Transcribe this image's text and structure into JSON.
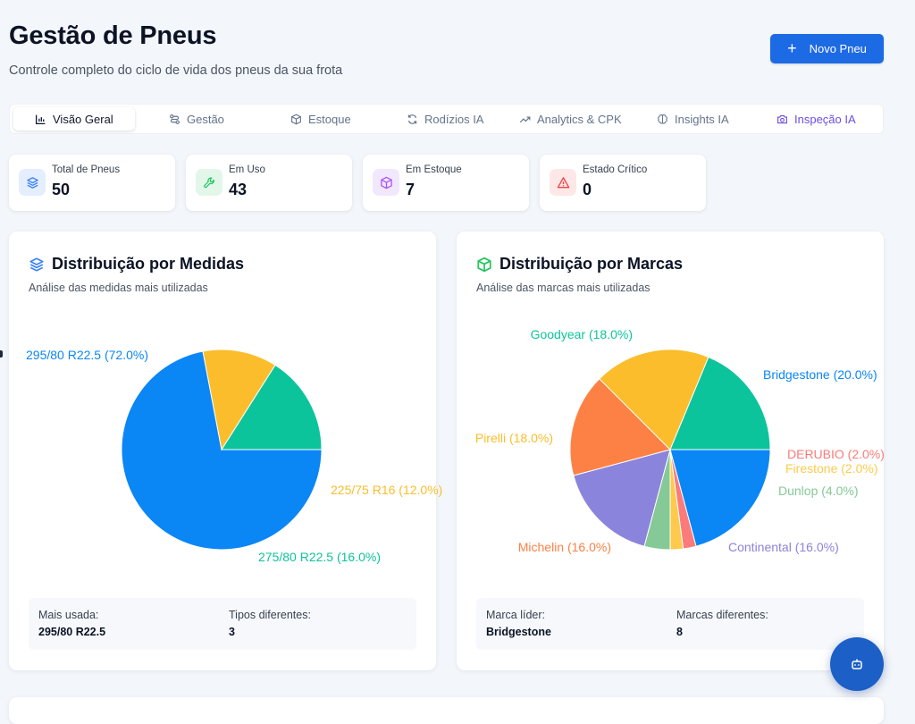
{
  "header": {
    "title": "Gestão de Pneus",
    "subtitle": "Controle completo do ciclo de vida dos pneus da sua frota",
    "new_button_label": "Novo Pneu"
  },
  "tabs": [
    {
      "label": "Visão Geral",
      "icon": "bar-chart-icon",
      "active": true
    },
    {
      "label": "Gestão",
      "icon": "route-icon"
    },
    {
      "label": "Estoque",
      "icon": "box-icon"
    },
    {
      "label": "Rodízios IA",
      "icon": "refresh-icon"
    },
    {
      "label": "Analytics & CPK",
      "icon": "trending-up-icon"
    },
    {
      "label": "Insights IA",
      "icon": "brain-icon"
    },
    {
      "label": "Inspeção IA",
      "icon": "camera-icon"
    }
  ],
  "stats": [
    {
      "label": "Total de Pneus",
      "value": "50",
      "icon": "layers-icon",
      "color": "#3b82f6"
    },
    {
      "label": "Em Uso",
      "value": "43",
      "icon": "wrench-icon",
      "color": "#22c55e"
    },
    {
      "label": "Em Estoque",
      "value": "7",
      "icon": "package-icon",
      "color": "#a855f7"
    },
    {
      "label": "Estado Crítico",
      "value": "0",
      "icon": "alert-triangle-icon",
      "color": "#ef4444"
    }
  ],
  "medidas": {
    "title": "Distribuição por Medidas",
    "subtitle": "Análise das medidas mais utilizadas",
    "footer": {
      "most_used_label": "Mais usada:",
      "most_used_value": "295/80 R22.5",
      "types_label": "Tipos diferentes:",
      "types_value": "3"
    }
  },
  "marcas": {
    "title": "Distribuição por Marcas",
    "subtitle": "Análise das marcas mais utilizadas",
    "footer": {
      "leader_label": "Marca líder:",
      "leader_value": "Bridgestone",
      "brands_label": "Marcas diferentes:",
      "brands_value": "8"
    }
  },
  "chart_data": [
    {
      "type": "pie",
      "categories": [
        "295/80 R22.5",
        "225/75 R16",
        "275/80 R22.5"
      ],
      "values": [
        72.0,
        12.0,
        16.0
      ],
      "labels": [
        "295/80 R22.5 (72.0%)",
        "225/75 R16 (12.0%)",
        "275/80 R22.5 (16.0%)"
      ],
      "colors": [
        "#0a86f5",
        "#fbbd2b",
        "#0cc49b"
      ]
    },
    {
      "type": "pie",
      "categories": [
        "Bridgestone",
        "DERUBIO",
        "Firestone",
        "Dunlop",
        "Continental",
        "Michelin",
        "Pirelli",
        "Goodyear"
      ],
      "values": [
        20.0,
        2.0,
        2.0,
        4.0,
        16.0,
        16.0,
        18.0,
        18.0
      ],
      "labels": [
        "Bridgestone (20.0%)",
        "DERUBIO (2.0%)",
        "Firestone (2.0%)",
        "Dunlop (4.0%)",
        "Continental (16.0%)",
        "Michelin (16.0%)",
        "Pirelli (18.0%)",
        "Goodyear (18.0%)"
      ],
      "colors": [
        "#0a86f5",
        "#fb7b7b",
        "#fdca4d",
        "#85c996",
        "#8b84dc",
        "#fd8145",
        "#fbbd2b",
        "#0cc49b"
      ]
    }
  ],
  "fab": {
    "icon": "bot-icon"
  }
}
